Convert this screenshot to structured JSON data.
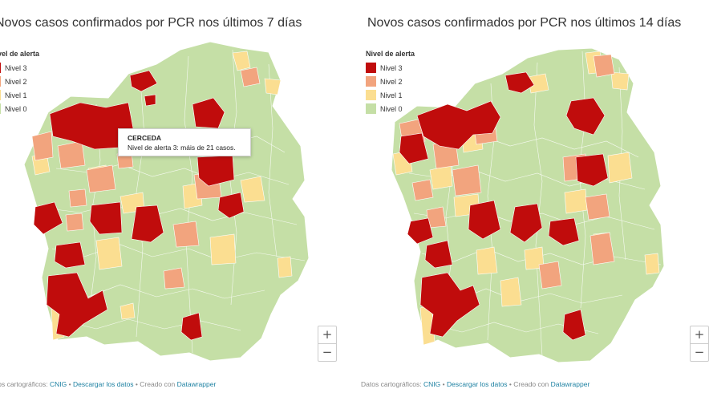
{
  "colors": {
    "nivel3": "#c00c0c",
    "nivel2": "#f2a47e",
    "nivel1": "#fbde91",
    "nivel0": "#c5dfa6",
    "link": "#1d81a2"
  },
  "legend": {
    "title": "Nivel de alerta",
    "items": [
      {
        "label": "Nivel 3",
        "color": "#c00c0c"
      },
      {
        "label": "Nivel 2",
        "color": "#f2a47e"
      },
      {
        "label": "Nivel 1",
        "color": "#fbde91"
      },
      {
        "label": "Nivel 0",
        "color": "#c5dfa6"
      }
    ]
  },
  "left_panel": {
    "title": "Novos casos confirmados por PCR nos últimos 7 días",
    "tooltip": {
      "title": "CERCEDA",
      "text": "Nivel de alerta 3: máis de 21 casos."
    }
  },
  "right_panel": {
    "title": "Novos casos confirmados por PCR nos últimos 14 días"
  },
  "zoom": {
    "in_label": "+",
    "out_label": "−"
  },
  "footer": {
    "prefix": "Datos cartográficos:",
    "cnig": "CNIG",
    "sep1": "•",
    "download": "Descargar los datos",
    "sep2": "•",
    "created": "Creado con",
    "datawrapper": "Datawrapper"
  }
}
